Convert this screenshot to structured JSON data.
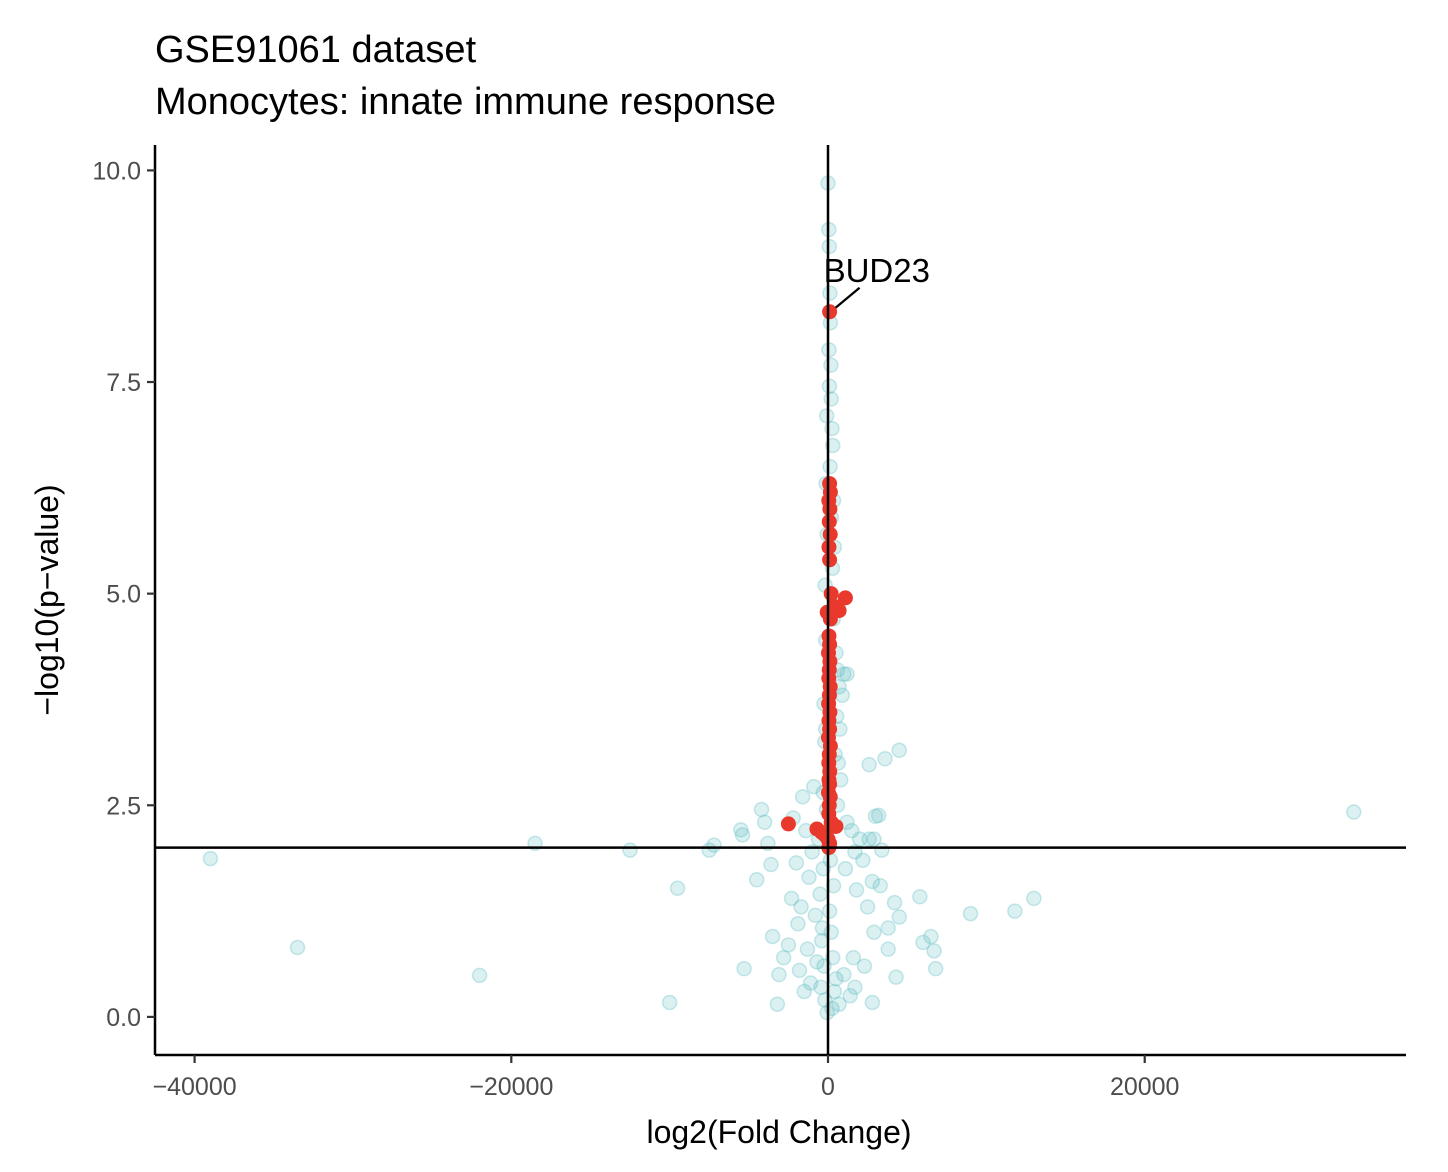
{
  "chart_data": {
    "type": "scatter",
    "title": "GSE91061 dataset",
    "subtitle": "Monocytes: innate immune response",
    "xlabel": "log2(Fold Change)",
    "ylabel": "−log10(p−value)",
    "xlim": [
      -42500,
      36500
    ],
    "ylim": [
      -0.45,
      10.3
    ],
    "x_ticks": [
      -40000,
      -20000,
      0,
      20000
    ],
    "x_tick_labels": [
      "−40000",
      "−20000",
      "0",
      "20000"
    ],
    "y_ticks": [
      0,
      2.5,
      5,
      7.5,
      10
    ],
    "y_tick_labels": [
      "0.0",
      "2.5",
      "5.0",
      "7.5",
      "10.0"
    ],
    "grid": false,
    "legend": "none",
    "reference_lines": {
      "hline_y": 2,
      "vline_x": 0
    },
    "colors": {
      "background_genes": "#5bbcc0",
      "pathway_genes": "#e8392c",
      "axis": "#000000",
      "tick_text": "#4d4d4d"
    },
    "annotation": {
      "label": "BUD23",
      "x": 100,
      "y": 8.33
    },
    "series": [
      {
        "role": "background",
        "opacity": 0.22,
        "points": [
          [
            -39000,
            1.87
          ],
          [
            -33500,
            0.82
          ],
          [
            -22000,
            0.49
          ],
          [
            -18500,
            2.05
          ],
          [
            -12500,
            1.97
          ],
          [
            -10000,
            0.17
          ],
          [
            -9500,
            1.52
          ],
          [
            -7500,
            1.97
          ],
          [
            -7200,
            2.03
          ],
          [
            -5500,
            2.21
          ],
          [
            -5400,
            2.15
          ],
          [
            -5300,
            0.57
          ],
          [
            -4500,
            1.62
          ],
          [
            -4200,
            2.45
          ],
          [
            -4000,
            2.3
          ],
          [
            -3800,
            2.05
          ],
          [
            -3600,
            1.8
          ],
          [
            -3500,
            0.95
          ],
          [
            -3200,
            0.15
          ],
          [
            -3100,
            0.5
          ],
          [
            -2800,
            0.7
          ],
          [
            -2500,
            0.85
          ],
          [
            -2300,
            1.4
          ],
          [
            -2200,
            2.35
          ],
          [
            -2000,
            1.82
          ],
          [
            -1900,
            1.1
          ],
          [
            -1800,
            0.55
          ],
          [
            -1700,
            1.3
          ],
          [
            -1600,
            2.6
          ],
          [
            -1500,
            0.3
          ],
          [
            -1400,
            2.2
          ],
          [
            -1300,
            0.8
          ],
          [
            -1200,
            1.65
          ],
          [
            -1100,
            0.4
          ],
          [
            -1000,
            1.95
          ],
          [
            -900,
            2.72
          ],
          [
            -800,
            1.2
          ],
          [
            -700,
            0.65
          ],
          [
            -600,
            2.1
          ],
          [
            -500,
            1.45
          ],
          [
            -400,
            0.9
          ],
          [
            -300,
            1.75
          ],
          [
            -200,
            0.2
          ],
          [
            -150,
            3.4
          ],
          [
            -100,
            2.45
          ],
          [
            -50,
            0.05
          ],
          [
            0,
            9.85
          ],
          [
            50,
            9.3
          ],
          [
            80,
            9.1
          ],
          [
            120,
            8.55
          ],
          [
            150,
            8.2
          ],
          [
            60,
            7.88
          ],
          [
            180,
            7.7
          ],
          [
            90,
            7.45
          ],
          [
            200,
            7.3
          ],
          [
            -80,
            7.1
          ],
          [
            250,
            6.95
          ],
          [
            300,
            6.75
          ],
          [
            130,
            6.5
          ],
          [
            -120,
            6.3
          ],
          [
            350,
            6.1
          ],
          [
            220,
            5.9
          ],
          [
            -60,
            5.7
          ],
          [
            400,
            5.55
          ],
          [
            280,
            5.3
          ],
          [
            -180,
            5.1
          ],
          [
            450,
            4.9
          ],
          [
            330,
            4.7
          ],
          [
            -140,
            4.45
          ],
          [
            500,
            4.3
          ],
          [
            600,
            4.1
          ],
          [
            1000,
            4.05
          ],
          [
            1200,
            4.05
          ],
          [
            700,
            3.9
          ],
          [
            900,
            3.8
          ],
          [
            -250,
            3.7
          ],
          [
            550,
            3.55
          ],
          [
            750,
            3.4
          ],
          [
            -200,
            3.25
          ],
          [
            450,
            3.1
          ],
          [
            650,
            3.0
          ],
          [
            2600,
            2.98
          ],
          [
            3600,
            3.05
          ],
          [
            4500,
            3.15
          ],
          [
            800,
            2.8
          ],
          [
            -300,
            2.65
          ],
          [
            600,
            2.5
          ],
          [
            3200,
            2.38
          ],
          [
            3000,
            2.37
          ],
          [
            1200,
            2.3
          ],
          [
            1500,
            2.2
          ],
          [
            2000,
            2.1
          ],
          [
            2600,
            2.1
          ],
          [
            2900,
            2.1
          ],
          [
            1700,
            1.95
          ],
          [
            3400,
            1.97
          ],
          [
            2200,
            1.85
          ],
          [
            1100,
            1.75
          ],
          [
            2800,
            1.6
          ],
          [
            3300,
            1.55
          ],
          [
            1800,
            1.5
          ],
          [
            5800,
            1.42
          ],
          [
            4200,
            1.35
          ],
          [
            2500,
            1.3
          ],
          [
            9000,
            1.22
          ],
          [
            11800,
            1.25
          ],
          [
            13000,
            1.4
          ],
          [
            4500,
            1.18
          ],
          [
            3800,
            1.05
          ],
          [
            2900,
            1.0
          ],
          [
            6500,
            0.95
          ],
          [
            6000,
            0.88
          ],
          [
            6700,
            0.78
          ],
          [
            3800,
            0.8
          ],
          [
            6800,
            0.57
          ],
          [
            2300,
            0.6
          ],
          [
            1600,
            0.7
          ],
          [
            1000,
            0.5
          ],
          [
            4300,
            0.47
          ],
          [
            1700,
            0.35
          ],
          [
            2800,
            0.17
          ],
          [
            1400,
            0.25
          ],
          [
            33200,
            2.42
          ],
          [
            700,
            0.15
          ],
          [
            500,
            0.45
          ],
          [
            300,
            0.7
          ],
          [
            200,
            1.0
          ],
          [
            100,
            1.25
          ],
          [
            350,
            1.55
          ],
          [
            150,
            1.85
          ],
          [
            250,
            0.1
          ],
          [
            400,
            0.3
          ],
          [
            -250,
            0.6
          ],
          [
            -350,
            1.05
          ],
          [
            -450,
            0.35
          ]
        ]
      },
      {
        "role": "pathway",
        "points": [
          [
            100,
            8.33
          ],
          [
            100,
            6.3
          ],
          [
            150,
            6.2
          ],
          [
            50,
            6.1
          ],
          [
            120,
            6.0
          ],
          [
            80,
            5.85
          ],
          [
            140,
            5.7
          ],
          [
            60,
            5.55
          ],
          [
            100,
            5.4
          ],
          [
            200,
            5.0
          ],
          [
            1100,
            4.95
          ],
          [
            400,
            4.85
          ],
          [
            700,
            4.8
          ],
          [
            -50,
            4.78
          ],
          [
            150,
            4.7
          ],
          [
            60,
            4.5
          ],
          [
            100,
            4.4
          ],
          [
            30,
            4.3
          ],
          [
            120,
            4.2
          ],
          [
            80,
            4.1
          ],
          [
            50,
            4.0
          ],
          [
            140,
            3.9
          ],
          [
            90,
            3.8
          ],
          [
            40,
            3.7
          ],
          [
            120,
            3.6
          ],
          [
            60,
            3.5
          ],
          [
            100,
            3.4
          ],
          [
            30,
            3.3
          ],
          [
            150,
            3.2
          ],
          [
            80,
            3.1
          ],
          [
            50,
            3.0
          ],
          [
            110,
            2.9
          ],
          [
            60,
            2.8
          ],
          [
            100,
            2.75
          ],
          [
            30,
            2.65
          ],
          [
            140,
            2.6
          ],
          [
            80,
            2.5
          ],
          [
            50,
            2.4
          ],
          [
            200,
            2.3
          ],
          [
            300,
            2.25
          ],
          [
            -2500,
            2.28
          ],
          [
            -700,
            2.22
          ],
          [
            -400,
            2.18
          ],
          [
            -200,
            2.15
          ],
          [
            0,
            2.1
          ],
          [
            100,
            2.05
          ],
          [
            50,
            2.0
          ],
          [
            500,
            2.25
          ]
        ]
      }
    ]
  }
}
